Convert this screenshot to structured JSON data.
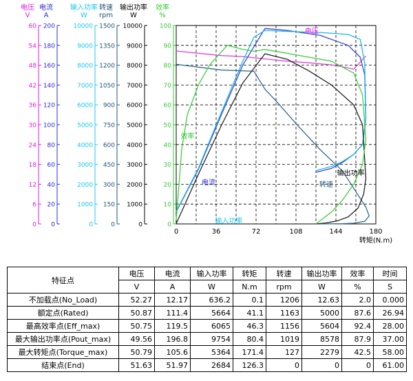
{
  "chart_data": {
    "type": "line",
    "xlabel": "转矩(N.m)",
    "xlim": [
      0,
      180
    ],
    "xticks": [
      0,
      36,
      72,
      108,
      144,
      180
    ],
    "axes": [
      {
        "name": "电压",
        "unit": "V",
        "color": "#e619e6",
        "lim": [
          0,
          60
        ],
        "ticks": [
          "0",
          "6",
          "12",
          "18",
          "24",
          "30",
          "36",
          "42",
          "48",
          "54",
          "60"
        ]
      },
      {
        "name": "电流",
        "unit": "A",
        "color": "#2c2ccf",
        "lim": [
          0,
          200
        ],
        "ticks": [
          "0",
          "20",
          "40",
          "60",
          "80",
          "100",
          "120",
          "140",
          "160",
          "180",
          "200"
        ]
      },
      {
        "name": "输入功率",
        "unit": "W",
        "color": "#19c8f0",
        "lim": [
          0,
          10000
        ],
        "ticks": [
          "0",
          "1000",
          "2000",
          "3000",
          "4000",
          "5000",
          "6000",
          "7000",
          "8000",
          "9000",
          "10000"
        ]
      },
      {
        "name": "转速",
        "unit": "rpm",
        "color": "#225577",
        "lim": [
          0,
          1500
        ],
        "ticks": [
          "0",
          "150",
          "300",
          "450",
          "600",
          "750",
          "900",
          "1050",
          "1200",
          "1350",
          "1500"
        ]
      },
      {
        "name": "输出功率",
        "unit": "W",
        "color": "#000000",
        "lim": [
          0,
          10000
        ],
        "ticks": [
          "0",
          "1000",
          "2000",
          "3000",
          "4000",
          "5000",
          "6000",
          "7000",
          "8000",
          "9000",
          "10000"
        ]
      },
      {
        "name": "效率",
        "unit": "%",
        "color": "#33cc33",
        "lim": [
          0,
          100
        ],
        "ticks": [
          "0",
          "10",
          "20",
          "30",
          "40",
          "50",
          "60",
          "70",
          "80",
          "90",
          "100"
        ]
      }
    ],
    "series": [
      {
        "name": "电压",
        "color": "#e040e0",
        "axis": 0,
        "x": [
          0,
          20,
          41,
          60,
          80,
          100,
          120,
          140,
          150,
          160,
          171
        ],
        "y": [
          52.3,
          51.6,
          50.9,
          50.6,
          49.9,
          49.2,
          48.7,
          48.1,
          47.5,
          46.8,
          50.8
        ]
      },
      {
        "name": "电流",
        "color": "#3b44d0",
        "axis": 1,
        "x": [
          0,
          20,
          41,
          60,
          80,
          100,
          130,
          155,
          166,
          170,
          171,
          168,
          160,
          150,
          140,
          126
        ],
        "y": [
          12.2,
          55,
          111,
          160,
          197,
          195,
          190,
          180,
          168,
          150,
          106,
          80,
          70,
          62,
          56,
          52
        ]
      },
      {
        "name": "输入功率",
        "color": "#19b8ea",
        "axis": 2,
        "x": [
          0,
          20,
          41,
          60,
          70,
          80,
          100,
          130,
          155,
          166,
          170,
          171,
          168,
          160,
          150,
          140,
          126
        ],
        "y": [
          636,
          2800,
          5664,
          8200,
          9400,
          9754,
          9700,
          9650,
          9550,
          9300,
          8100,
          5364,
          4000,
          3500,
          3150,
          2900,
          2684
        ]
      },
      {
        "name": "转速",
        "color": "#2d6a8e",
        "axis": 3,
        "x": [
          0,
          41,
          70,
          80,
          90,
          110,
          130,
          150,
          171,
          174,
          170,
          160,
          150,
          140,
          126
        ],
        "y": [
          1206,
          1163,
          1154,
          1019,
          930,
          740,
          560,
          400,
          127,
          60,
          20,
          5,
          2,
          1,
          0
        ]
      },
      {
        "name": "输出功率",
        "color": "#222222",
        "axis": 4,
        "x": [
          0,
          20,
          41,
          60,
          80,
          100,
          120,
          140,
          160,
          168,
          171,
          169,
          164,
          155,
          145,
          135,
          126
        ],
        "y": [
          13,
          2500,
          5000,
          7100,
          8578,
          8300,
          7700,
          7000,
          6000,
          5000,
          2279,
          1500,
          800,
          350,
          150,
          50,
          0
        ]
      },
      {
        "name": "效率",
        "color": "#3ecf3e",
        "axis": 5,
        "x": [
          0,
          5,
          10,
          20,
          30,
          46,
          60,
          70,
          80,
          100,
          120,
          140,
          160,
          168,
          171,
          168,
          160,
          150,
          140,
          126
        ],
        "y": [
          2,
          38,
          55,
          70,
          80,
          90,
          88,
          87,
          87.9,
          86,
          84,
          82,
          76,
          65,
          42.5,
          30,
          20,
          12,
          6,
          0
        ]
      }
    ],
    "series_labels": [
      {
        "text": "电压",
        "color": "#e619e6",
        "x": 116,
        "y": 57.6
      },
      {
        "text": "效率",
        "color": "#33cc33",
        "x": 4,
        "y": 43
      },
      {
        "text": "电流",
        "color": "#2c2ccf",
        "x": 23,
        "y": 39.5
      },
      {
        "text": "输入功率",
        "color": "#19c8f0",
        "x": 35,
        "y": 40.5
      },
      {
        "text": "转速",
        "color": "#225577",
        "x": 129,
        "y": 282
      },
      {
        "text": "输出功率",
        "color": "#000000",
        "x": 145,
        "y": 2450
      }
    ],
    "grid": true
  },
  "table": {
    "header_row1": [
      "特征点",
      "电压",
      "电流",
      "输入功率",
      "转矩",
      "转速",
      "输出功率",
      "效率",
      "时间"
    ],
    "header_row2": [
      "V",
      "A",
      "W",
      "N.m",
      "rpm",
      "W",
      "%",
      "S"
    ],
    "rows": [
      [
        "不加载点(No_Load)",
        "52.27",
        "12.17",
        "636.2",
        "0.1",
        "1206",
        "12.63",
        "2.0",
        "0.000"
      ],
      [
        "额定点(Rated)",
        "50.87",
        "111.4",
        "5664",
        "41.1",
        "1163",
        "5000",
        "87.6",
        "26.94"
      ],
      [
        "最高效率点(Eff_max)",
        "50.75",
        "119.5",
        "6065",
        "46.3",
        "1156",
        "5604",
        "92.4",
        "28.00"
      ],
      [
        "最大输出功率点(Pout_max)",
        "49.56",
        "196.8",
        "9754",
        "80.4",
        "1019",
        "8578",
        "87.9",
        "37.00"
      ],
      [
        "最大转矩点(Torque_max)",
        "50.79",
        "105.6",
        "5364",
        "171.4",
        "127",
        "2279",
        "42.5",
        "58.00"
      ],
      [
        "结束点(End)",
        "51.63",
        "51.97",
        "2684",
        "126.3",
        "0",
        "0",
        "0",
        "61.00"
      ]
    ]
  }
}
